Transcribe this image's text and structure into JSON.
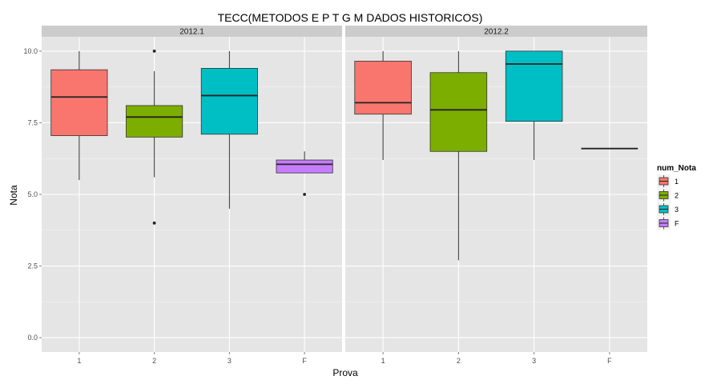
{
  "chart_data": {
    "type": "boxplot",
    "title": "TECC(METODOS E P T G M DADOS HISTORICOS)",
    "xlabel": "Prova",
    "ylabel": "Nota",
    "ylim": [
      -0.5,
      10.5
    ],
    "y_ticks": [
      0.0,
      2.5,
      5.0,
      7.5,
      10.0
    ],
    "y_tick_labels": [
      "0.0",
      "2.5",
      "5.0",
      "7.5",
      "10.0"
    ],
    "categories": [
      "1",
      "2",
      "3",
      "F"
    ],
    "grid": true,
    "legend": {
      "title": "num_Nota",
      "position": "right",
      "entries": [
        {
          "label": "1",
          "color": "#F8766D"
        },
        {
          "label": "2",
          "color": "#7CAE00"
        },
        {
          "label": "3",
          "color": "#00BFC4"
        },
        {
          "label": "F",
          "color": "#C77CFF"
        }
      ]
    },
    "panels": [
      {
        "label": "2012.1",
        "boxes": [
          {
            "category": "1",
            "min": 5.5,
            "q1": 7.05,
            "median": 8.4,
            "q3": 9.35,
            "max": 10.0,
            "outliers": []
          },
          {
            "category": "2",
            "min": 5.6,
            "q1": 7.0,
            "median": 7.7,
            "q3": 8.1,
            "max": 9.3,
            "outliers": [
              10.0,
              4.0
            ]
          },
          {
            "category": "3",
            "min": 4.5,
            "q1": 7.1,
            "median": 8.45,
            "q3": 9.4,
            "max": 10.0,
            "outliers": []
          },
          {
            "category": "F",
            "min": 5.75,
            "q1": 5.75,
            "median": 6.05,
            "q3": 6.2,
            "max": 6.5,
            "outliers": [
              5.0
            ]
          }
        ]
      },
      {
        "label": "2012.2",
        "boxes": [
          {
            "category": "1",
            "min": 6.2,
            "q1": 7.8,
            "median": 8.2,
            "q3": 9.65,
            "max": 10.0,
            "outliers": []
          },
          {
            "category": "2",
            "min": 2.7,
            "q1": 6.5,
            "median": 7.95,
            "q3": 9.25,
            "max": 10.0,
            "outliers": []
          },
          {
            "category": "3",
            "min": 6.2,
            "q1": 7.55,
            "median": 9.55,
            "q3": 10.0,
            "max": 10.0,
            "outliers": []
          },
          {
            "category": "F",
            "min": 6.6,
            "q1": 6.6,
            "median": 6.6,
            "q3": 6.6,
            "max": 6.6,
            "outliers": []
          }
        ]
      }
    ]
  }
}
